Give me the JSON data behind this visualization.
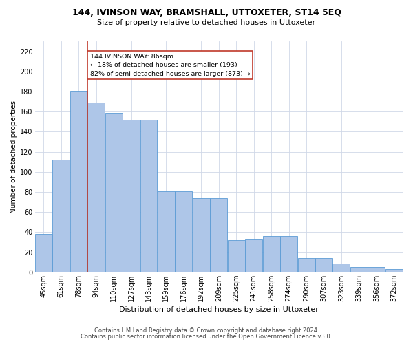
{
  "title": "144, IVINSON WAY, BRAMSHALL, UTTOXETER, ST14 5EQ",
  "subtitle": "Size of property relative to detached houses in Uttoxeter",
  "xlabel": "Distribution of detached houses by size in Uttoxeter",
  "ylabel": "Number of detached properties",
  "bar_labels": [
    "45sqm",
    "61sqm",
    "78sqm",
    "94sqm",
    "110sqm",
    "127sqm",
    "143sqm",
    "159sqm",
    "176sqm",
    "192sqm",
    "209sqm",
    "225sqm",
    "241sqm",
    "258sqm",
    "274sqm",
    "290sqm",
    "307sqm",
    "323sqm",
    "339sqm",
    "356sqm",
    "372sqm"
  ],
  "bar_values": [
    38,
    112,
    181,
    169,
    159,
    152,
    152,
    81,
    81,
    74,
    74,
    32,
    33,
    36,
    36,
    14,
    14,
    9,
    5,
    5,
    3
  ],
  "bar_color": "#aec6e8",
  "bar_edge_color": "#5b9bd5",
  "background_color": "#ffffff",
  "grid_color": "#d0d8e8",
  "annotation_text": "144 IVINSON WAY: 86sqm\n← 18% of detached houses are smaller (193)\n82% of semi-detached houses are larger (873) →",
  "annotation_box_color": "#ffffff",
  "annotation_box_edge": "#c0392b",
  "vline_color": "#c0392b",
  "vline_bar_index": 2,
  "ylim": [
    0,
    230
  ],
  "yticks": [
    0,
    20,
    40,
    60,
    80,
    100,
    120,
    140,
    160,
    180,
    200,
    220
  ],
  "footer_line1": "Contains HM Land Registry data © Crown copyright and database right 2024.",
  "footer_line2": "Contains public sector information licensed under the Open Government Licence v3.0.",
  "title_fontsize": 9,
  "subtitle_fontsize": 8,
  "ylabel_fontsize": 7.5,
  "xlabel_fontsize": 8,
  "tick_fontsize": 7,
  "footer_fontsize": 6
}
